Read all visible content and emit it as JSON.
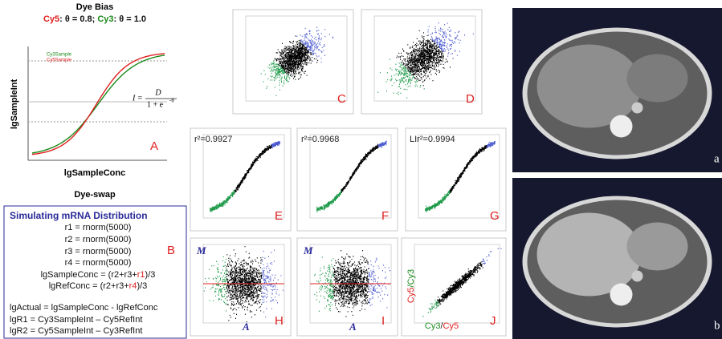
{
  "dye_bias": {
    "title": "Dye Bias",
    "subtitle": [
      {
        "text": "Cy5",
        "color": "#e02020"
      },
      {
        "text": ": θ = 0.8; ",
        "color": "#111111"
      },
      {
        "text": "Cy3",
        "color": "#1a8a1a"
      },
      {
        "text": ": θ = 1.0",
        "color": "#111111"
      }
    ],
    "y_label": "lgSampleInt",
    "x_label": "lgSampleConc",
    "legend": [
      {
        "text": "Cy3Sample",
        "color": "#1a8a1a"
      },
      {
        "text": "Cy5Sample",
        "color": "#e02020"
      }
    ],
    "formula": {
      "lhs": "I =",
      "numerator": "D",
      "denominator": "1 + e",
      "exponent": "-θ"
    },
    "panel_label": "A"
  },
  "dye_swap": {
    "title": "Dye-swap"
  },
  "simulation": {
    "title": "Simulating mRNA Distribution",
    "panel_label": "B",
    "lines": [
      {
        "align": "center",
        "parts": [
          {
            "text": "r1 = rnorm(5000)"
          }
        ]
      },
      {
        "align": "center",
        "parts": [
          {
            "text": "r2 = rnorm(5000)"
          }
        ]
      },
      {
        "align": "center",
        "parts": [
          {
            "text": "r3 = rnorm(5000)"
          }
        ]
      },
      {
        "align": "center",
        "parts": [
          {
            "text": "r4 = rnorm(5000)"
          }
        ]
      },
      {
        "align": "center",
        "parts": [
          {
            "text": "lgSampleConc = (r2+r3+"
          },
          {
            "text": "r1",
            "color": "#e02020"
          },
          {
            "text": ")/3"
          }
        ]
      },
      {
        "align": "center",
        "parts": [
          {
            "text": "lgRefConc = (r2+r3+"
          },
          {
            "text": "r4",
            "color": "#e02020"
          },
          {
            "text": ")/3"
          }
        ]
      },
      {
        "align": "left",
        "parts": [
          {
            "text": "lgActual = lgSampleConc - lgRefConc"
          }
        ]
      },
      {
        "align": "left",
        "parts": [
          {
            "text": "lgR1 = Cy3SampleInt – Cy5RefInt"
          }
        ]
      },
      {
        "align": "left",
        "parts": [
          {
            "text": "lgR2 = Cy5SampleInt – Cy3RefInt"
          }
        ]
      }
    ]
  },
  "scatter_panels": [
    {
      "label": "C",
      "kind": "cloud"
    },
    {
      "label": "D",
      "kind": "cloud"
    },
    {
      "label": "E",
      "kind": "curve",
      "annotation": "r²=0.9927"
    },
    {
      "label": "F",
      "kind": "curve",
      "annotation": "r²=0.9968"
    },
    {
      "label": "G",
      "kind": "curve",
      "annotation": "LIr²=0.9994"
    },
    {
      "label": "H",
      "kind": "ma",
      "y_label": "M",
      "x_label": "A"
    },
    {
      "label": "I",
      "kind": "ma",
      "y_label": "M",
      "x_label": "A"
    },
    {
      "label": "J",
      "kind": "band",
      "y_label_parts": [
        {
          "text": "Cy5",
          "color": "#e02020"
        },
        {
          "text": "/Cy3",
          "color": "#1a8a1a"
        }
      ],
      "x_label_parts": [
        {
          "text": "Cy3",
          "color": "#1a8a1a"
        },
        {
          "text": "/",
          "color": "#222222"
        },
        {
          "text": "Cy5",
          "color": "#e02020"
        }
      ]
    }
  ],
  "ct_images": [
    {
      "label": "a"
    },
    {
      "label": "b"
    }
  ]
}
